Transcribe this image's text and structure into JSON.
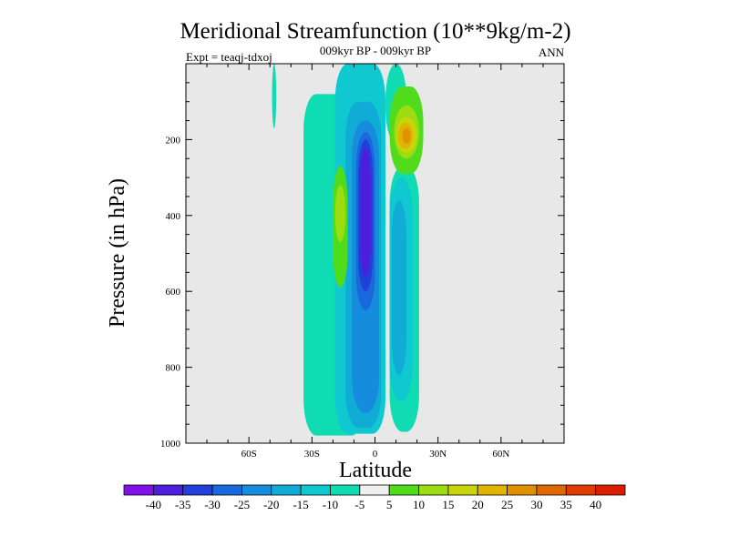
{
  "chart_data": {
    "type": "heatmap",
    "title": "Meridional Streamfunction (10**9kg/m-2)",
    "subtitle": "009kyr BP - 009kyr BP",
    "left_label": "Expt = teaqj-tdxoj",
    "right_label": "ANN",
    "xlabel": "Latitude",
    "ylabel": "Pressure (in hPa)",
    "xlim": [
      -90,
      90
    ],
    "ylim": [
      0,
      1000
    ],
    "x_ticks": [
      {
        "value": -60,
        "label": "60S"
      },
      {
        "value": -30,
        "label": "30S"
      },
      {
        "value": 0,
        "label": "0"
      },
      {
        "value": 30,
        "label": "30N"
      },
      {
        "value": 60,
        "label": "60N"
      }
    ],
    "y_ticks": [
      {
        "value": 200,
        "label": "200"
      },
      {
        "value": 400,
        "label": "400"
      },
      {
        "value": 600,
        "label": "600"
      },
      {
        "value": 800,
        "label": "800"
      },
      {
        "value": 1000,
        "label": "1000"
      }
    ],
    "background_color": "#e8e8e8",
    "colorbar": {
      "levels": [
        -40,
        -35,
        -30,
        -25,
        -20,
        -15,
        -10,
        -5,
        5,
        10,
        15,
        20,
        25,
        30,
        35,
        40
      ],
      "labels": [
        "-40",
        "-35",
        "-30",
        "-25",
        "-20",
        "-15",
        "-10",
        "-5",
        "5",
        "10",
        "15",
        "20",
        "25",
        "30",
        "35",
        "40"
      ],
      "colors": [
        "#8210e8",
        "#4d1fdc",
        "#2140d8",
        "#1968dc",
        "#168cdc",
        "#10acd6",
        "#0fc8d0",
        "#10dcb4",
        "#f0f0f0",
        "#50dc1c",
        "#9cdc10",
        "#c8d40c",
        "#e0b400",
        "#e09000",
        "#e06800",
        "#e03c00",
        "#dc1e00"
      ]
    },
    "contour_regions": [
      {
        "level": -5,
        "lat_min": -32,
        "lat_max": -25,
        "p_min": 270,
        "p_max": 560
      },
      {
        "level": -5,
        "lat_min": -34,
        "lat_max": -5,
        "p_min": 80,
        "p_max": 980
      },
      {
        "level": -5,
        "lat_min": 5,
        "lat_max": 15,
        "p_min": 0,
        "p_max": 210
      },
      {
        "level": -5,
        "lat_min": 7,
        "lat_max": 21,
        "p_min": 270,
        "p_max": 970
      },
      {
        "level": -5,
        "lat_min": -49,
        "lat_max": -47,
        "p_min": 0,
        "p_max": 170
      },
      {
        "level": -10,
        "lat_min": -19,
        "lat_max": 5,
        "p_min": 0,
        "p_max": 975
      },
      {
        "level": -10,
        "lat_min": 7,
        "lat_max": 18,
        "p_min": 300,
        "p_max": 890
      },
      {
        "level": -15,
        "lat_min": -14,
        "lat_max": 3,
        "p_min": 100,
        "p_max": 960
      },
      {
        "level": -15,
        "lat_min": 8,
        "lat_max": 15,
        "p_min": 360,
        "p_max": 820
      },
      {
        "level": -20,
        "lat_min": -11,
        "lat_max": 2,
        "p_min": 150,
        "p_max": 920
      },
      {
        "level": -25,
        "lat_min": -9,
        "lat_max": 0,
        "p_min": 180,
        "p_max": 650
      },
      {
        "level": -30,
        "lat_min": -8,
        "lat_max": -1,
        "p_min": 200,
        "p_max": 600
      },
      {
        "level": -35,
        "lat_min": -7,
        "lat_max": -2,
        "p_min": 220,
        "p_max": 560
      },
      {
        "level": -35,
        "lat_min": -6,
        "lat_max": -2,
        "p_min": 380,
        "p_max": 540
      },
      {
        "level": 5,
        "lat_min": 7,
        "lat_max": 23,
        "p_min": 60,
        "p_max": 290
      },
      {
        "level": 5,
        "lat_min": -20,
        "lat_max": -13,
        "p_min": 270,
        "p_max": 590
      },
      {
        "level": 10,
        "lat_min": -19,
        "lat_max": -14,
        "p_min": 320,
        "p_max": 470
      },
      {
        "level": 10,
        "lat_min": 9,
        "lat_max": 21,
        "p_min": 110,
        "p_max": 250
      },
      {
        "level": 15,
        "lat_min": 10,
        "lat_max": 20,
        "p_min": 140,
        "p_max": 235
      },
      {
        "level": 20,
        "lat_min": 11,
        "lat_max": 18,
        "p_min": 155,
        "p_max": 225
      },
      {
        "level": 25,
        "lat_min": 13,
        "lat_max": 17,
        "p_min": 170,
        "p_max": 210
      }
    ]
  }
}
